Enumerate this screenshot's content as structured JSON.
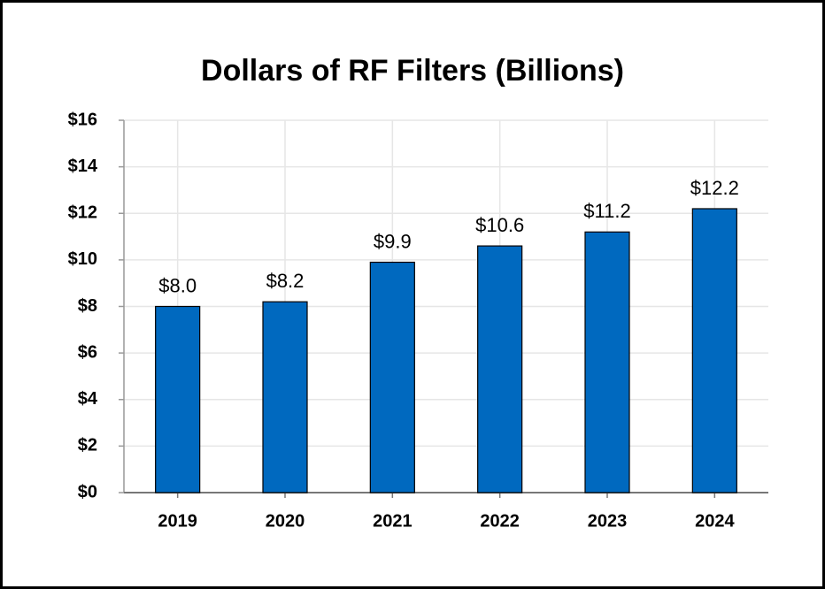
{
  "chart_data": {
    "type": "bar",
    "title": "Dollars of RF Filters (Billions)",
    "categories": [
      "2019",
      "2020",
      "2021",
      "2022",
      "2023",
      "2024"
    ],
    "values": [
      8.0,
      8.2,
      9.9,
      10.6,
      11.2,
      12.2
    ],
    "value_labels": [
      "$8.0",
      "$8.2",
      "$9.9",
      "$10.6",
      "$11.2",
      "$12.2"
    ],
    "color": "#0069bf",
    "ylim": [
      0,
      16
    ],
    "yticks": [
      {
        "value": 0,
        "label": "$0"
      },
      {
        "value": 2,
        "label": "$2"
      },
      {
        "value": 4,
        "label": "$4"
      },
      {
        "value": 6,
        "label": "$6"
      },
      {
        "value": 8,
        "label": "$8"
      },
      {
        "value": 10,
        "label": "$10"
      },
      {
        "value": 12,
        "label": "$12"
      },
      {
        "value": 14,
        "label": "$14"
      },
      {
        "value": 16,
        "label": "$16"
      }
    ],
    "grid": true
  }
}
